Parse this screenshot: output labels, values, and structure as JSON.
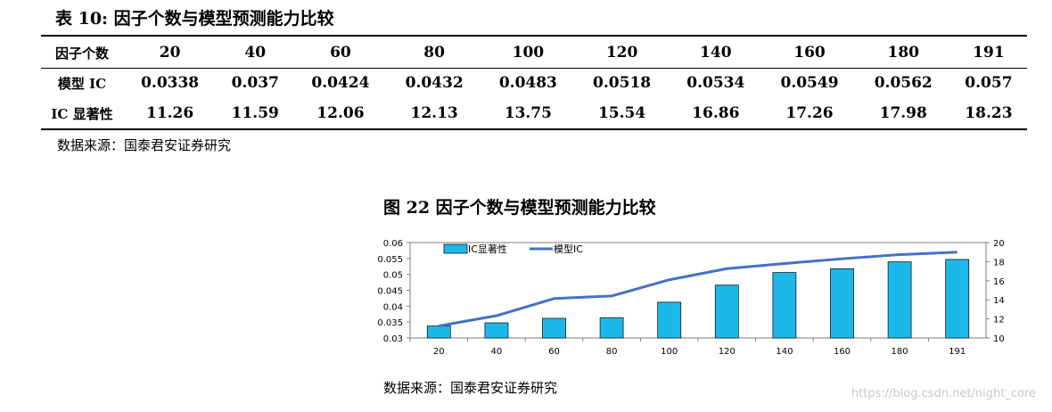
{
  "table": {
    "title": "表 10: 因子个数与模型预测能力比较",
    "header_label": "因子个数",
    "columns": [
      "20",
      "40",
      "60",
      "80",
      "100",
      "120",
      "140",
      "160",
      "180",
      "191"
    ],
    "rows": [
      {
        "label": "模型 IC",
        "values": [
          "0.0338",
          "0.037",
          "0.0424",
          "0.0432",
          "0.0483",
          "0.0518",
          "0.0534",
          "0.0549",
          "0.0562",
          "0.057"
        ]
      },
      {
        "label": "IC 显著性",
        "values": [
          "11.26",
          "11.59",
          "12.06",
          "12.13",
          "13.75",
          "15.54",
          "16.86",
          "17.26",
          "17.98",
          "18.23"
        ]
      }
    ],
    "source": "数据来源：国泰君安证券研究"
  },
  "figure": {
    "title": "图 22 因子个数与模型预测能力比较",
    "source": "数据来源：国泰君安证券研究"
  },
  "chart_data": {
    "type": "bar",
    "categories": [
      "20",
      "40",
      "60",
      "80",
      "100",
      "120",
      "140",
      "160",
      "180",
      "191"
    ],
    "series": [
      {
        "name": "IC显著性",
        "type": "bar",
        "axis": "right",
        "color": "#1CB8EA",
        "values": [
          11.26,
          11.59,
          12.06,
          12.13,
          13.75,
          15.54,
          16.86,
          17.26,
          17.98,
          18.23
        ]
      },
      {
        "name": "模型IC",
        "type": "line",
        "axis": "left",
        "color": "#4472C4",
        "values": [
          0.0338,
          0.037,
          0.0424,
          0.0432,
          0.0483,
          0.0518,
          0.0534,
          0.0549,
          0.0562,
          0.057
        ]
      }
    ],
    "y_left": {
      "range": [
        0.03,
        0.06
      ],
      "ticks": [
        "0.03",
        "0.035",
        "0.04",
        "0.045",
        "0.05",
        "0.055",
        "0.06"
      ]
    },
    "y_right": {
      "range": [
        10,
        20
      ],
      "ticks": [
        "10",
        "12",
        "14",
        "16",
        "18",
        "20"
      ]
    },
    "legend_position": "top-left",
    "grid": false
  },
  "watermark": "https://blog.csdn.net/night_core"
}
